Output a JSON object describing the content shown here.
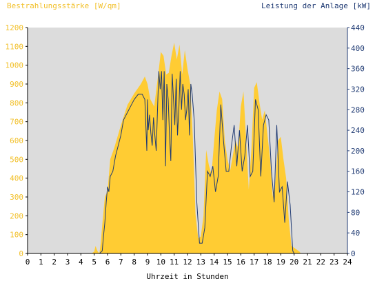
{
  "chart_data": {
    "type": "area",
    "left_axis_label": "Bestrahlungsstärke [W/qm]",
    "right_axis_label": "Leistung der Anlage [kW]",
    "xlabel": "Uhrzeit in Stunden",
    "x_ticks": [
      "0",
      "1",
      "2",
      "3",
      "4",
      "5",
      "6",
      "7",
      "8",
      "9",
      "10",
      "11",
      "12",
      "13",
      "14",
      "15",
      "16",
      "17",
      "18",
      "19",
      "20",
      "21",
      "22",
      "23",
      "24"
    ],
    "left_ticks": [
      "0",
      "100",
      "200",
      "300",
      "400",
      "500",
      "600",
      "700",
      "800",
      "900",
      "1000",
      "1100",
      "1200"
    ],
    "right_ticks": [
      "0",
      "40",
      "80",
      "120",
      "160",
      "200",
      "240",
      "280",
      "320",
      "360",
      "400",
      "440"
    ],
    "xlim": [
      0,
      24
    ],
    "ylim_left": [
      0,
      1200
    ],
    "ylim_right": [
      0,
      440
    ],
    "colors": {
      "irradiance": "#ffcc33",
      "power": "#1f3a73",
      "plot_bg": "#dcdcdc",
      "left_axis": "#f2c02a",
      "right_axis": "#1f3a73"
    },
    "series": [
      {
        "name": "Bestrahlungsstärke [W/qm]",
        "axis": "left",
        "x": [
          0,
          4.8,
          5.0,
          5.1,
          5.2,
          5.3,
          5.4,
          5.5,
          5.6,
          5.8,
          6.0,
          6.2,
          6.5,
          7.0,
          7.5,
          8.0,
          8.5,
          8.8,
          9.0,
          9.2,
          9.5,
          9.8,
          10.0,
          10.2,
          10.4,
          10.6,
          10.8,
          11.0,
          11.2,
          11.4,
          11.6,
          11.8,
          12.0,
          12.2,
          12.4,
          12.6,
          12.8,
          13.0,
          13.2,
          13.4,
          13.6,
          13.8,
          14.0,
          14.2,
          14.4,
          14.6,
          14.8,
          15.0,
          15.2,
          15.4,
          15.6,
          15.8,
          16.0,
          16.2,
          16.4,
          16.6,
          16.8,
          17.0,
          17.2,
          17.4,
          17.6,
          17.8,
          18.0,
          18.2,
          18.4,
          18.6,
          18.8,
          19.0,
          19.2,
          19.4,
          19.6,
          19.8,
          20.0,
          20.2,
          20.4,
          20.5,
          24
        ],
        "values": [
          0,
          0,
          10,
          40,
          20,
          5,
          5,
          60,
          150,
          300,
          330,
          500,
          560,
          680,
          790,
          850,
          900,
          940,
          900,
          820,
          780,
          950,
          1070,
          1050,
          950,
          960,
          1050,
          1120,
          1030,
          1110,
          950,
          1080,
          980,
          900,
          620,
          210,
          80,
          90,
          200,
          550,
          470,
          420,
          600,
          760,
          860,
          820,
          600,
          500,
          440,
          520,
          600,
          560,
          780,
          860,
          600,
          340,
          560,
          880,
          910,
          800,
          710,
          760,
          630,
          500,
          300,
          390,
          600,
          620,
          500,
          400,
          180,
          40,
          30,
          20,
          10,
          0,
          0
        ]
      },
      {
        "name": "Leistung der Anlage [kW]",
        "axis": "right",
        "x": [
          0,
          5.0,
          5.4,
          5.6,
          5.7,
          5.8,
          5.9,
          6.0,
          6.1,
          6.2,
          6.4,
          6.6,
          6.8,
          7.0,
          7.2,
          7.5,
          7.8,
          8.0,
          8.3,
          8.6,
          8.8,
          8.95,
          9.0,
          9.05,
          9.15,
          9.25,
          9.35,
          9.45,
          9.55,
          9.65,
          9.75,
          9.85,
          9.95,
          10.05,
          10.15,
          10.25,
          10.35,
          10.45,
          10.55,
          10.65,
          10.75,
          10.85,
          10.95,
          11.05,
          11.15,
          11.25,
          11.35,
          11.45,
          11.55,
          11.65,
          11.75,
          11.85,
          11.95,
          12.05,
          12.15,
          12.25,
          12.35,
          12.5,
          12.7,
          12.9,
          13.1,
          13.3,
          13.5,
          13.7,
          13.9,
          14.1,
          14.3,
          14.5,
          14.7,
          14.9,
          15.1,
          15.3,
          15.5,
          15.7,
          15.9,
          16.1,
          16.3,
          16.5,
          16.7,
          16.9,
          17.1,
          17.3,
          17.5,
          17.7,
          17.9,
          18.1,
          18.3,
          18.5,
          18.7,
          18.9,
          19.1,
          19.3,
          19.5,
          19.7,
          19.9,
          20.0,
          24
        ],
        "values": [
          0,
          0,
          0,
          5,
          35,
          60,
          100,
          130,
          120,
          150,
          160,
          190,
          210,
          230,
          260,
          275,
          290,
          300,
          310,
          310,
          300,
          200,
          300,
          240,
          270,
          235,
          210,
          265,
          230,
          200,
          280,
          355,
          320,
          355,
          260,
          355,
          170,
          330,
          300,
          230,
          180,
          350,
          300,
          250,
          340,
          230,
          280,
          355,
          280,
          330,
          310,
          260,
          280,
          320,
          230,
          330,
          310,
          260,
          100,
          20,
          20,
          50,
          160,
          150,
          170,
          120,
          150,
          290,
          220,
          160,
          160,
          210,
          250,
          170,
          240,
          160,
          190,
          250,
          150,
          160,
          300,
          280,
          150,
          250,
          270,
          260,
          160,
          100,
          250,
          120,
          130,
          60,
          140,
          95,
          5,
          0,
          0
        ]
      }
    ]
  }
}
